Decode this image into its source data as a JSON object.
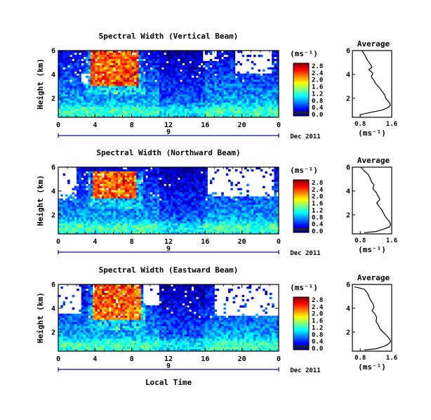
{
  "figure": {
    "date_label": "Dec 2011",
    "date_marker": "9",
    "xlabel_bottom": "Local Time",
    "colorbar_unit": "(ms⁻¹)",
    "average_unit": "(ms⁻¹)"
  },
  "chart_data": [
    {
      "type": "heatmap",
      "title": "Spectral Width (Vertical Beam)",
      "ylabel": "Height (km)",
      "xticks": [
        "0",
        "4",
        "8",
        "12",
        "16",
        "20",
        "0"
      ],
      "yticks": [
        "6",
        "4",
        "2"
      ],
      "xlim": [
        0,
        24
      ],
      "ylim": [
        0.4,
        6
      ],
      "colorbar": {
        "ticks": [
          "2.8",
          "2.4",
          "2.0",
          "1.6",
          "1.2",
          "0.8",
          "0.4",
          "0.0"
        ],
        "range": [
          0,
          2.8
        ]
      },
      "features": {
        "high_core": {
          "t": [
            3.5,
            8.8
          ],
          "h": [
            3.1,
            6.0
          ],
          "level": 2.5
        },
        "void_patches": [
          {
            "t": [
              2.6,
              3.3
            ],
            "h": [
              3.2,
              4.0
            ]
          },
          {
            "t": [
              15.8,
              17.2
            ],
            "h": [
              5.2,
              6.0
            ]
          },
          {
            "t": [
              19.2,
              23.3
            ],
            "h": [
              4.0,
              6.0
            ]
          }
        ]
      }
    },
    {
      "type": "line",
      "title": "Average",
      "xlabel": "(ms⁻¹)",
      "xticks": [
        "0.8",
        "1.6"
      ],
      "yticks": [
        "6",
        "4",
        "2"
      ],
      "xlim": [
        0.6,
        1.6
      ],
      "ylim": [
        0.4,
        6
      ],
      "x": [
        0.85,
        0.88,
        0.92,
        0.95,
        1.0,
        1.05,
        1.1,
        1.02,
        1.12,
        1.08,
        1.15,
        1.2,
        1.28,
        1.35,
        1.42,
        1.45,
        1.5,
        1.55,
        1.56,
        1.5,
        1.35,
        1.05,
        0.78
      ],
      "y": [
        6.0,
        5.8,
        5.6,
        5.4,
        5.1,
        4.9,
        4.6,
        4.4,
        4.1,
        3.8,
        3.5,
        3.2,
        2.9,
        2.6,
        2.3,
        2.0,
        1.8,
        1.6,
        1.4,
        1.2,
        1.0,
        0.8,
        0.6
      ]
    },
    {
      "type": "heatmap",
      "title": "Spectral Width (Northward Beam)",
      "ylabel": "Height (km)",
      "xticks": [
        "0",
        "4",
        "8",
        "12",
        "16",
        "20",
        "0"
      ],
      "yticks": [
        "6",
        "4",
        "2"
      ],
      "xlim": [
        0,
        24
      ],
      "ylim": [
        0.4,
        6
      ],
      "colorbar": {
        "ticks": [
          "2.8",
          "2.4",
          "2.0",
          "1.6",
          "1.2",
          "0.8",
          "0.4",
          "0.0"
        ],
        "range": [
          0,
          2.8
        ]
      },
      "features": {
        "high_core": {
          "t": [
            3.8,
            8.6
          ],
          "h": [
            3.3,
            5.6
          ],
          "level": 2.5
        },
        "void_patches": [
          {
            "t": [
              0,
              2.0
            ],
            "h": [
              3.3,
              6.0
            ]
          },
          {
            "t": [
              16.3,
              23.6
            ],
            "h": [
              3.6,
              6.0
            ]
          }
        ]
      }
    },
    {
      "type": "line",
      "title": "Average",
      "xlabel": "(ms⁻¹)",
      "xticks": [
        "0.8",
        "1.6"
      ],
      "yticks": [
        "6",
        "4",
        "2"
      ],
      "xlim": [
        0.6,
        1.6
      ],
      "ylim": [
        0.4,
        6
      ],
      "x": [
        0.82,
        0.9,
        1.0,
        1.05,
        1.08,
        1.15,
        1.12,
        1.2,
        1.25,
        1.3,
        1.22,
        1.28,
        1.35,
        1.4,
        1.45,
        1.5,
        1.55,
        1.57,
        1.55,
        1.4,
        1.2,
        0.9
      ],
      "y": [
        6.0,
        5.7,
        5.4,
        5.1,
        4.8,
        4.5,
        4.2,
        3.9,
        3.6,
        3.3,
        3.0,
        2.7,
        2.4,
        2.1,
        1.8,
        1.6,
        1.4,
        1.2,
        1.0,
        0.8,
        0.6,
        0.5
      ]
    },
    {
      "type": "heatmap",
      "title": "Spectral Width (Eastward Beam)",
      "ylabel": "Height (km)",
      "xticks": [
        "0",
        "4",
        "8",
        "12",
        "16",
        "20",
        "0"
      ],
      "yticks": [
        "6",
        "4",
        "2"
      ],
      "xlim": [
        0,
        24
      ],
      "ylim": [
        0.4,
        6
      ],
      "colorbar": {
        "ticks": [
          "2.8",
          "2.4",
          "2.0",
          "1.6",
          "1.2",
          "0.8",
          "0.4",
          "0.0"
        ],
        "range": [
          0,
          2.8
        ]
      },
      "features": {
        "high_core": {
          "t": [
            3.8,
            9.0
          ],
          "h": [
            3.0,
            6.0
          ],
          "level": 2.5
        },
        "void_patches": [
          {
            "t": [
              0,
              2.5
            ],
            "h": [
              3.6,
              6.0
            ]
          },
          {
            "t": [
              9.2,
              11.0
            ],
            "h": [
              4.3,
              6.0
            ]
          },
          {
            "t": [
              17.0,
              24.0
            ],
            "h": [
              3.4,
              6.0
            ]
          }
        ]
      }
    },
    {
      "type": "line",
      "title": "Average",
      "xlabel": "(ms⁻¹)",
      "xticks": [
        "0.8",
        "1.6"
      ],
      "yticks": [
        "6",
        "4",
        "2"
      ],
      "xlim": [
        0.6,
        1.6
      ],
      "ylim": [
        0.4,
        6
      ],
      "x": [
        0.65,
        0.9,
        0.98,
        1.02,
        1.06,
        1.12,
        1.15,
        1.1,
        1.18,
        1.22,
        1.2,
        1.26,
        1.3,
        1.38,
        1.45,
        1.5,
        1.55,
        1.57,
        1.52,
        1.4,
        1.2,
        0.9
      ],
      "y": [
        5.8,
        5.6,
        5.3,
        5.0,
        4.7,
        4.4,
        4.1,
        3.8,
        3.5,
        3.2,
        2.9,
        2.6,
        2.3,
        2.0,
        1.8,
        1.6,
        1.4,
        1.2,
        1.0,
        0.8,
        0.6,
        0.5
      ]
    }
  ]
}
